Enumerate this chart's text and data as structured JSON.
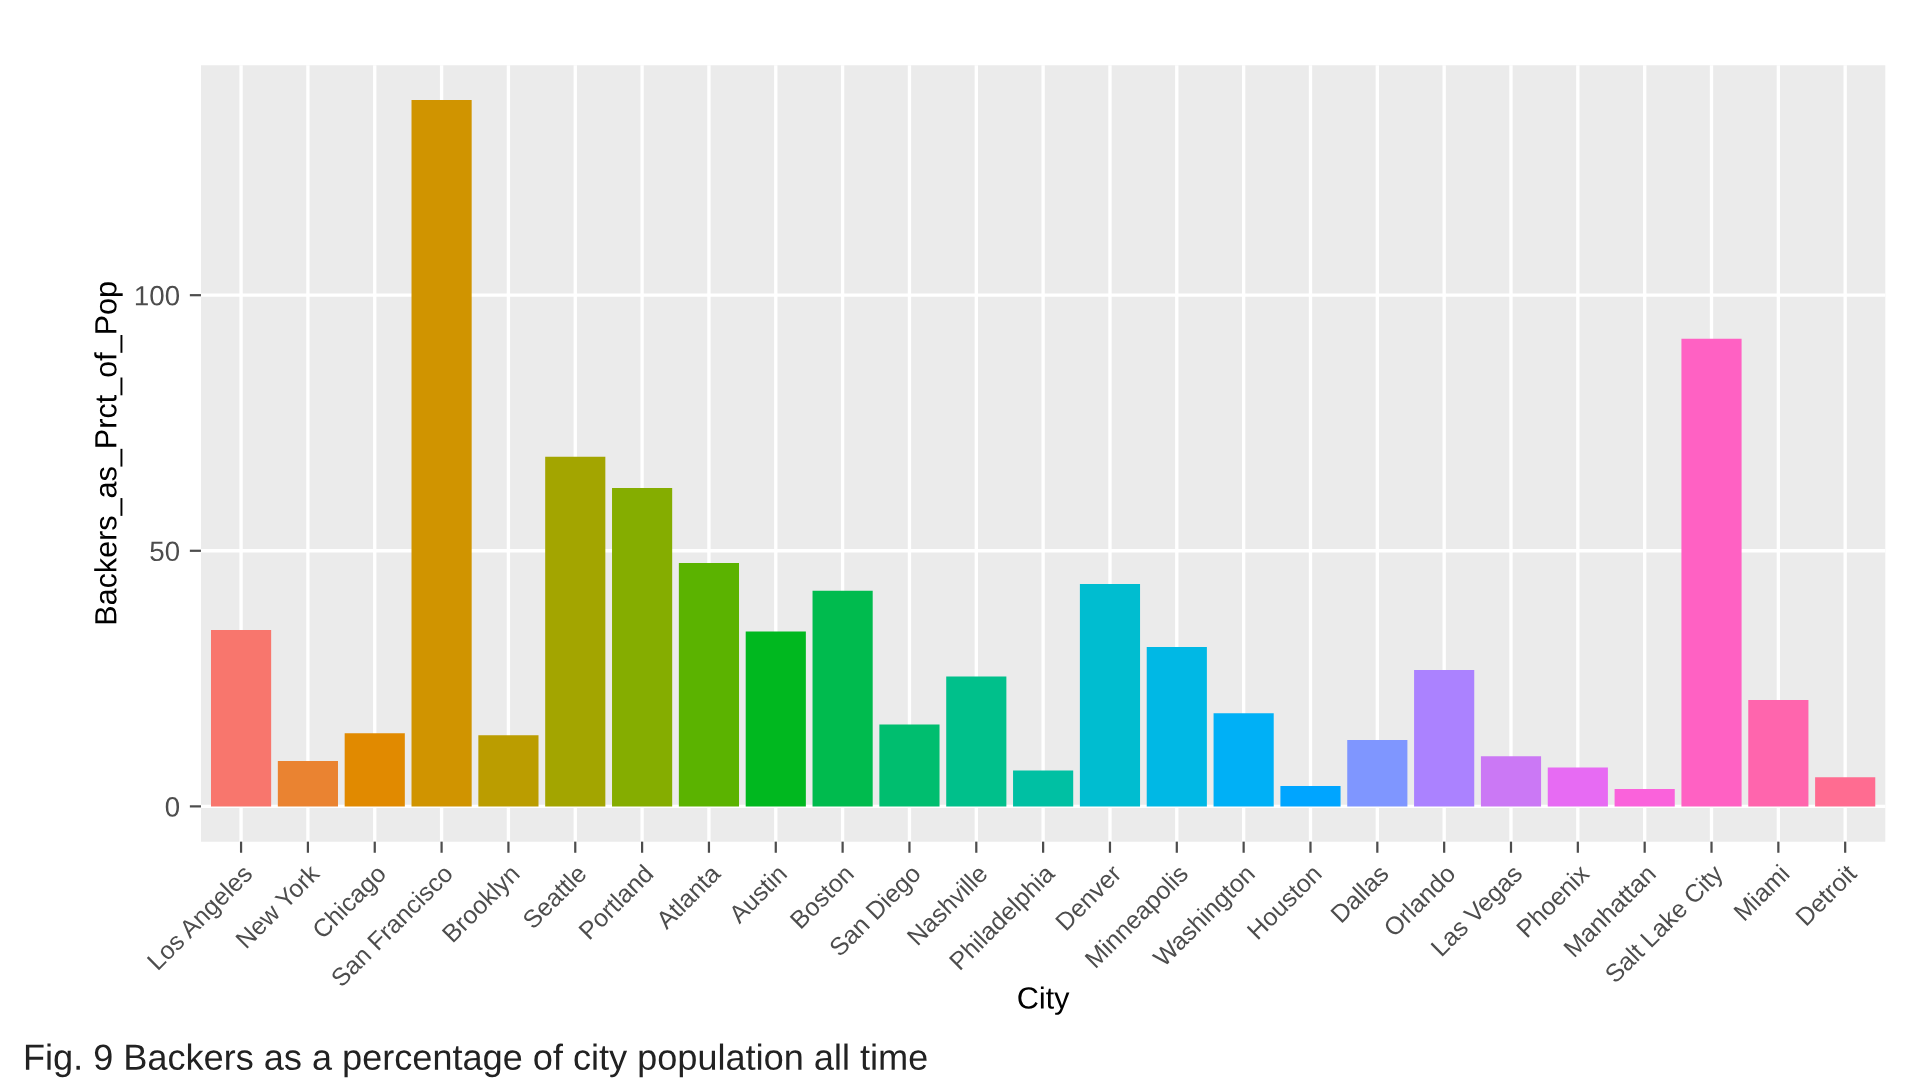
{
  "chart_data": {
    "type": "bar",
    "xlabel": "City",
    "ylabel": "Backers_as_Prct_of_Pop",
    "categories": [
      "Los Angeles",
      "New York",
      "Chicago",
      "San Francisco",
      "Brooklyn",
      "Seattle",
      "Portland",
      "Atlanta",
      "Austin",
      "Boston",
      "San Diego",
      "Nashville",
      "Philadelphia",
      "Denver",
      "Minneapolis",
      "Washington",
      "Houston",
      "Dallas",
      "Orlando",
      "Las Vegas",
      "Phoenix",
      "Manhattan",
      "Salt Lake City",
      "Miami",
      "Detroit"
    ],
    "values": [
      34.5,
      8.9,
      14.3,
      138.2,
      13.9,
      68.4,
      62.3,
      47.6,
      34.2,
      42.2,
      16.0,
      25.4,
      7.0,
      43.5,
      31.2,
      18.2,
      4.0,
      13.0,
      26.7,
      9.8,
      7.6,
      3.4,
      91.5,
      20.8,
      5.7
    ],
    "colors": [
      "#f8766d",
      "#ea8331",
      "#e18a00",
      "#d09400",
      "#bb9d00",
      "#a3a500",
      "#85ad00",
      "#5bb300",
      "#00b81f",
      "#00bb4e",
      "#00be6f",
      "#00c08b",
      "#00c0a3",
      "#00bdd0",
      "#00b8e5",
      "#00b0f6",
      "#00a5ff",
      "#7f96ff",
      "#ab82ff",
      "#cb78f5",
      "#e76bf3",
      "#fa62db",
      "#ff61c3",
      "#ff65ad",
      "#ff6c91"
    ],
    "ylim": [
      -6.9,
      145
    ],
    "yticks": [
      0,
      50,
      100
    ],
    "grid": true,
    "legend": false,
    "annotations": [
      "Fig. 9 Backers as a percentage of city population all time"
    ]
  }
}
